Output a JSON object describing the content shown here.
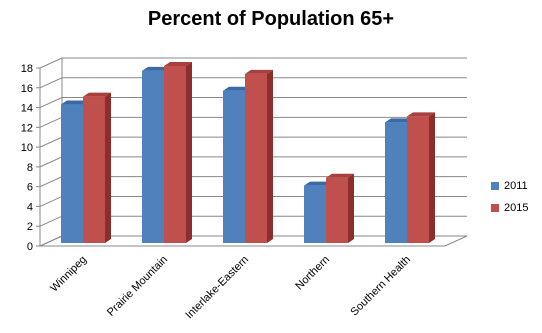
{
  "chart_data": {
    "type": "bar",
    "title": "Percent of Population 65+",
    "categories": [
      "Winnipeg",
      "Prairie Mountain",
      "Interlake-Eastern",
      "Northern",
      "Southern Health"
    ],
    "series": [
      {
        "name": "2011",
        "values": [
          14.0,
          17.4,
          15.4,
          5.8,
          12.2
        ]
      },
      {
        "name": "2015",
        "values": [
          14.8,
          17.9,
          17.1,
          6.6,
          12.8
        ]
      }
    ],
    "ylim": [
      0,
      18
    ],
    "yticks": [
      "0",
      "2",
      "4",
      "6",
      "8",
      "10",
      "12",
      "14",
      "16",
      "18"
    ],
    "grid": true,
    "legend_position": "right"
  },
  "colors": {
    "series_2011": "#4f81bd",
    "series_2011_top": "#3a6aa6",
    "series_2011_side": "#2f5a8f",
    "series_2015": "#c0504d",
    "series_2015_top": "#a8403d",
    "series_2015_side": "#8b2e2c",
    "grid": "#888888"
  }
}
